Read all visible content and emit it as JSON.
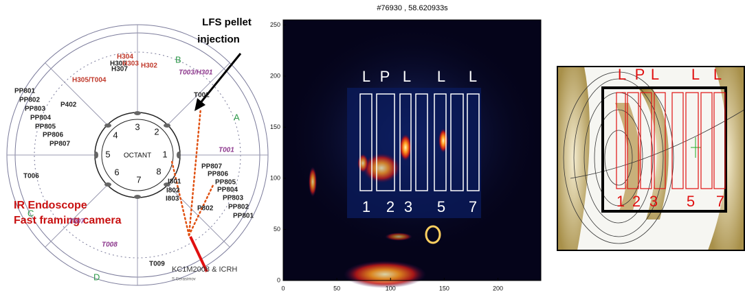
{
  "left_panel": {
    "pellet_label": [
      "LFS pellet",
      "injection"
    ],
    "camera_label": [
      "IR Endoscope",
      "Fast framing camera"
    ],
    "antenna_label": "KC1M2008 & ICRH",
    "author": "S.Gerasimov",
    "octant_label": "OCTANT",
    "octants": [
      "3",
      "2",
      "4",
      "1",
      "5",
      "8",
      "6",
      "7"
    ],
    "sectors": [
      "A",
      "B",
      "C",
      "D"
    ],
    "ports": [
      "H304",
      "H306",
      "H307",
      "H303",
      "H302",
      "H305/T004",
      "T003/H301",
      "T002",
      "PP801",
      "PP802",
      "PP803",
      "PP804",
      "PP805",
      "PP806",
      "PP807",
      "P402",
      "T001",
      "T006",
      "PP807",
      "PP806",
      "PP805",
      "PP804",
      "PP803",
      "PP802",
      "PP801",
      "I801",
      "I802",
      "I803",
      "P802",
      "T007",
      "T008",
      "T009"
    ]
  },
  "middle_panel": {
    "title": "#76930 , 58.620933s",
    "xlim": [
      0,
      240
    ],
    "ylim": [
      0,
      255
    ],
    "xticks": [
      0,
      50,
      100,
      150,
      200
    ],
    "yticks": [
      0,
      50,
      100,
      150,
      200,
      250
    ],
    "top_labels": [
      "L",
      "P",
      "L",
      "L",
      "L"
    ],
    "bottom_labels": [
      "1",
      "2",
      "3",
      "5",
      "7"
    ]
  },
  "right_panel": {
    "top_labels": [
      "L",
      "P",
      "L",
      "L",
      "L"
    ],
    "bottom_labels": [
      "1",
      "2",
      "3",
      "5",
      "7"
    ]
  }
}
